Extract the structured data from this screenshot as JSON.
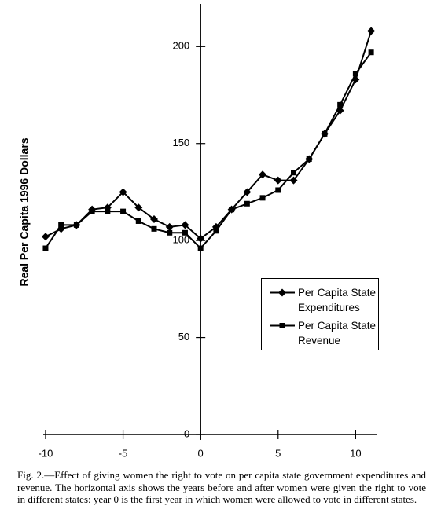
{
  "chart_data": {
    "type": "line",
    "ylabel": "Real Per Capita 1996 Dollars",
    "caption": "Fig. 2.—Effect of giving women the right to vote on per capita state government expenditures and revenue. The horizontal axis shows the years before and after women were given the right to vote in different states: year 0 is the first year in which women were allowed to vote in different states.",
    "x": [
      -10,
      -9,
      -8,
      -7,
      -6,
      -5,
      -4,
      -3,
      -2,
      -1,
      0,
      1,
      2,
      3,
      4,
      5,
      6,
      7,
      8,
      9,
      10,
      11
    ],
    "series": [
      {
        "name": "Per Capita State Expenditures",
        "color": "#000000",
        "marker": "diamond",
        "values": [
          102,
          106,
          108,
          116,
          117,
          125,
          117,
          111,
          107,
          108,
          101,
          107,
          116,
          125,
          134,
          131,
          131,
          142,
          155,
          167,
          183,
          208
        ]
      },
      {
        "name": "Per Capita State Revenue",
        "color": "#000000",
        "marker": "square",
        "values": [
          96,
          108,
          108,
          115,
          115,
          115,
          110,
          106,
          104,
          104,
          96,
          105,
          116,
          119,
          122,
          126,
          135,
          142,
          155,
          170,
          186,
          197
        ]
      }
    ],
    "xlim": [
      -10.15,
      11.4
    ],
    "ylim": [
      0,
      222
    ],
    "xticks": [
      -10,
      -5,
      0,
      5,
      10
    ],
    "yticks": [
      0,
      50,
      100,
      150,
      200
    ]
  }
}
